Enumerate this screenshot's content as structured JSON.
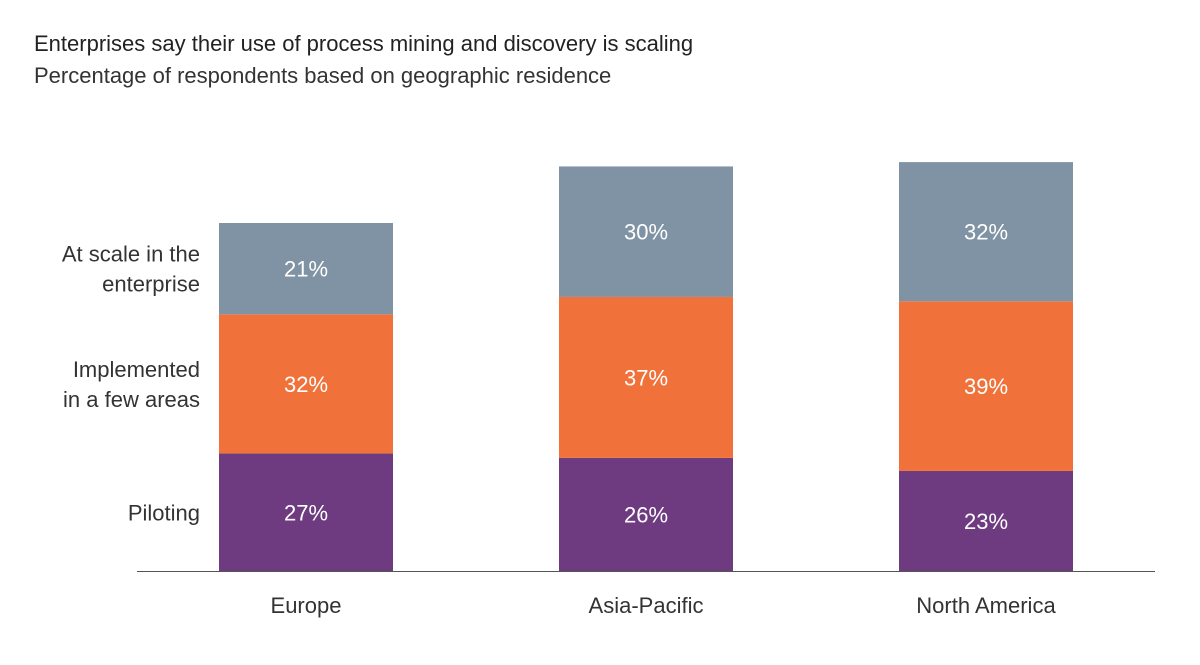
{
  "chart_data": {
    "type": "bar",
    "stacked": true,
    "title": "Enterprises say their use of process mining and discovery is scaling",
    "subtitle": "Percentage of respondents based on geographic residence",
    "categories": [
      "Europe",
      "Asia-Pacific",
      "North America"
    ],
    "series": [
      {
        "name": "Piloting",
        "values": [
          27,
          26,
          23
        ],
        "color": "#6e3b80"
      },
      {
        "name": "Implemented in a few areas",
        "label_lines": [
          "Implemented",
          "in a few areas"
        ],
        "values": [
          32,
          37,
          39
        ],
        "color": "#f0723a"
      },
      {
        "name": "At scale in the enterprise",
        "label_lines": [
          "At scale in the",
          "enterprise"
        ],
        "values": [
          21,
          30,
          32
        ],
        "color": "#7f93a4"
      }
    ],
    "value_suffix": "%",
    "legend": "left",
    "grid": false
  }
}
